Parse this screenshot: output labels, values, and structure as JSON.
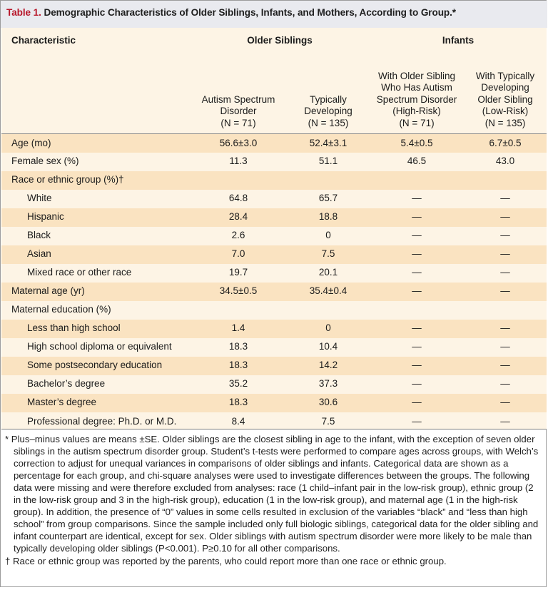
{
  "title": {
    "label": "Table 1.",
    "text": "Demographic Characteristics of Older Siblings, Infants, and Mothers, According to Group.*"
  },
  "header": {
    "characteristic": "Characteristic",
    "older_siblings": "Older Siblings",
    "infants": "Infants",
    "columns": [
      [
        "Autism Spectrum",
        "Disorder",
        "(N = 71)"
      ],
      [
        "Typically",
        "Developing",
        "(N = 135)"
      ],
      [
        "With Older Sibling",
        "Who Has Autism",
        "Spectrum Disorder",
        "(High-Risk)",
        "(N = 71)"
      ],
      [
        "With Typically",
        "Developing",
        "Older Sibling",
        "(Low-Risk)",
        "(N = 135)"
      ]
    ]
  },
  "rows": [
    {
      "label": "Age (mo)",
      "indent": false,
      "values": [
        "56.6±3.0",
        "52.4±3.1",
        "5.4±0.5",
        "6.7±0.5"
      ]
    },
    {
      "label": "Female sex (%)",
      "indent": false,
      "values": [
        "11.3",
        "51.1",
        "46.5",
        "43.0"
      ]
    },
    {
      "label": "Race or ethnic group (%)†",
      "indent": false,
      "values": [
        "",
        "",
        "",
        ""
      ]
    },
    {
      "label": "White",
      "indent": true,
      "values": [
        "64.8",
        "65.7",
        "—",
        "—"
      ]
    },
    {
      "label": "Hispanic",
      "indent": true,
      "values": [
        "28.4",
        "18.8",
        "—",
        "—"
      ]
    },
    {
      "label": "Black",
      "indent": true,
      "values": [
        "2.6",
        "0",
        "—",
        "—"
      ]
    },
    {
      "label": "Asian",
      "indent": true,
      "values": [
        "7.0",
        "7.5",
        "—",
        "—"
      ]
    },
    {
      "label": "Mixed race or other race",
      "indent": true,
      "values": [
        "19.7",
        "20.1",
        "—",
        "—"
      ]
    },
    {
      "label": "Maternal age (yr)",
      "indent": false,
      "values": [
        "34.5±0.5",
        "35.4±0.4",
        "—",
        "—"
      ]
    },
    {
      "label": "Maternal education (%)",
      "indent": false,
      "values": [
        "",
        "",
        "",
        ""
      ]
    },
    {
      "label": "Less than high school",
      "indent": true,
      "values": [
        "1.4",
        "0",
        "—",
        "—"
      ]
    },
    {
      "label": "High school diploma or equivalent",
      "indent": true,
      "values": [
        "18.3",
        "10.4",
        "—",
        "—"
      ]
    },
    {
      "label": "Some postsecondary education",
      "indent": true,
      "values": [
        "18.3",
        "14.2",
        "—",
        "—"
      ]
    },
    {
      "label": "Bachelor’s degree",
      "indent": true,
      "values": [
        "35.2",
        "37.3",
        "—",
        "—"
      ]
    },
    {
      "label": "Master’s degree",
      "indent": true,
      "values": [
        "18.3",
        "30.6",
        "—",
        "—"
      ]
    },
    {
      "label": "Professional degree: Ph.D. or M.D.",
      "indent": true,
      "values": [
        "8.4",
        "7.5",
        "—",
        "—"
      ]
    }
  ],
  "footnotes": {
    "star": "* Plus–minus values are means ±SE. Older siblings are the closest sibling in age to the infant, with the exception of seven older siblings in the autism spectrum disorder group. Student’s t-tests were performed to compare ages across groups, with Welch’s correction to adjust for unequal variances in comparisons of older siblings and infants. Categorical data are shown as a percentage for each group, and chi-square analyses were used to investigate differences between the groups. The following data were missing and were therefore excluded from analyses: race (1 child–infant pair in the low-risk group), ethnic group (2 in the low-risk group and 3 in the high-risk group), education (1 in the low-risk group), and maternal age (1 in the high-risk group). In addition, the presence of “0” values in some cells resulted in exclusion of the variables “black” and “less than high school” from group comparisons. Since the sample included only full biologic siblings, categorical data for the older sibling and infant counterpart are identical, except for sex. Older siblings with autism spectrum disorder were more likely to be male than typically developing older siblings (P<0.001). P≥0.10 for all other comparisons.",
    "dagger": "† Race or ethnic group was reported by the parents, who could report more than one race or ethnic group."
  },
  "colors": {
    "title_label": "#b8182b",
    "title_bg": "#e9eaef",
    "table_bg": "#fdf4e5",
    "row_shade": "#fae3c1"
  }
}
